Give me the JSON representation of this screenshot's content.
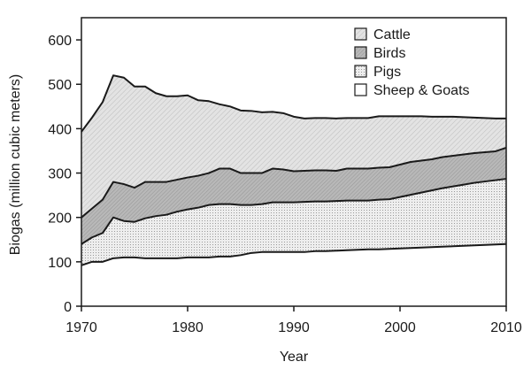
{
  "chart_data": {
    "type": "area",
    "stacked": true,
    "xlabel": "Year",
    "ylabel": "Biogas (million cubic meters)",
    "xlim": [
      1970,
      2010
    ],
    "ylim": [
      0,
      650
    ],
    "xticks": [
      "1970",
      "1980",
      "1990",
      "2000",
      "2010"
    ],
    "yticks": [
      "0",
      "100",
      "200",
      "300",
      "400",
      "500",
      "600"
    ],
    "grid": false,
    "legend_position": "top-right",
    "x": [
      1970,
      1971,
      1972,
      1973,
      1974,
      1975,
      1976,
      1977,
      1978,
      1979,
      1980,
      1981,
      1982,
      1983,
      1984,
      1985,
      1986,
      1987,
      1988,
      1989,
      1990,
      1991,
      1992,
      1993,
      1994,
      1995,
      1996,
      1997,
      1998,
      1999,
      2000,
      2001,
      2002,
      2003,
      2004,
      2005,
      2006,
      2007,
      2008,
      2009,
      2010
    ],
    "series": [
      {
        "name": "Sheep & Goats",
        "fill": "#ffffff",
        "values": [
          92,
          100,
          100,
          108,
          110,
          110,
          108,
          108,
          108,
          108,
          110,
          110,
          110,
          112,
          112,
          115,
          120,
          122,
          122,
          122,
          122,
          122,
          124,
          124,
          125,
          126,
          127,
          128,
          128,
          129,
          130,
          131,
          132,
          133,
          134,
          135,
          136,
          137,
          138,
          139,
          140
        ]
      },
      {
        "name": "Pigs",
        "fill": "#e6e6e6",
        "values": [
          48,
          55,
          65,
          92,
          82,
          80,
          90,
          95,
          98,
          105,
          108,
          112,
          118,
          118,
          118,
          113,
          108,
          108,
          112,
          112,
          112,
          113,
          112,
          112,
          112,
          112,
          111,
          110,
          112,
          112,
          116,
          120,
          124,
          128,
          132,
          135,
          138,
          141,
          143,
          145,
          147
        ]
      },
      {
        "name": "Birds",
        "fill": "#b3b3b3",
        "values": [
          60,
          65,
          75,
          80,
          83,
          77,
          82,
          77,
          74,
          72,
          72,
          72,
          72,
          80,
          80,
          72,
          72,
          70,
          76,
          74,
          70,
          70,
          70,
          70,
          68,
          72,
          72,
          72,
          72,
          72,
          73,
          74,
          72,
          70,
          70,
          69,
          68,
          67,
          66,
          65,
          70
        ]
      },
      {
        "name": "Cattle",
        "fill": "#dddddd",
        "values": [
          193,
          205,
          220,
          240,
          240,
          228,
          215,
          200,
          193,
          188,
          185,
          170,
          162,
          145,
          140,
          141,
          140,
          137,
          128,
          127,
          123,
          118,
          118,
          118,
          118,
          114,
          114,
          114,
          116,
          115,
          109,
          103,
          100,
          96,
          91,
          88,
          84,
          80,
          77,
          74,
          66
        ]
      }
    ]
  },
  "colors": {
    "outline": "#1a1a1a",
    "background": "#ffffff"
  }
}
